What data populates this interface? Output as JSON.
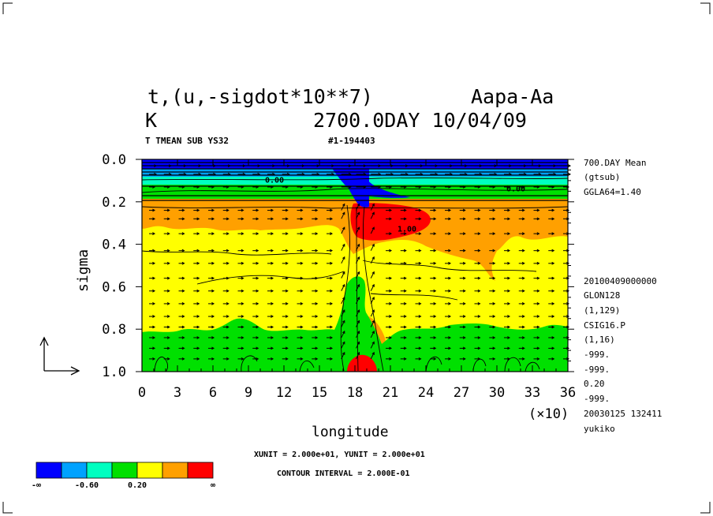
{
  "chart_data": {
    "type": "heatmap",
    "title_left": "t,(u,-sigdot*10**7)",
    "title_right": "Aapa-Aa",
    "unit": "K",
    "time_label": "2700.0DAY 10/04/09",
    "subtitle_left": "T TMEAN SUB YS32",
    "subtitle_mid": "#1-194403",
    "xlabel": "longitude",
    "ylabel": "sigma",
    "x_unit_note": "(×10)",
    "x_ticks": [
      "0",
      "3",
      "6",
      "9",
      "12",
      "15",
      "18",
      "21",
      "24",
      "27",
      "30",
      "33",
      "36"
    ],
    "y_ticks": [
      "0.0",
      "0.2",
      "0.4",
      "0.6",
      "0.8",
      "1.0"
    ],
    "xlim": [
      0,
      36
    ],
    "ylim": [
      0.0,
      1.0
    ],
    "y_reversed": true,
    "contour_labels": [
      {
        "text": "0.00",
        "x": 11.2,
        "y": 0.11
      },
      {
        "text": "0.00",
        "x": 31.6,
        "y": 0.15
      },
      {
        "text": "1.00",
        "x": 22.4,
        "y": 0.34
      }
    ],
    "right_info": [
      "700.DAY Mean",
      "(gtsub)",
      "GGLA64=1.40",
      "20100409000000",
      "GLON128",
      "(1,129)",
      "CSIG16.P",
      "(1,16)",
      "-999.",
      "-999.",
      "0.20",
      "-999.",
      "20030125 132411",
      "yukiko"
    ],
    "xunit_text": "XUNIT = 2.000e+01, YUNIT = 2.000e+01",
    "contour_interval_text": "CONTOUR INTERVAL = 2.000E-01",
    "colorbar": {
      "colors": [
        "#0000ff",
        "#00a2ff",
        "#00ffc0",
        "#00e000",
        "#ffff00",
        "#ffa000",
        "#ff0000"
      ],
      "labels": [
        "-∞",
        "-0.60",
        "0.20",
        "∞"
      ]
    }
  }
}
